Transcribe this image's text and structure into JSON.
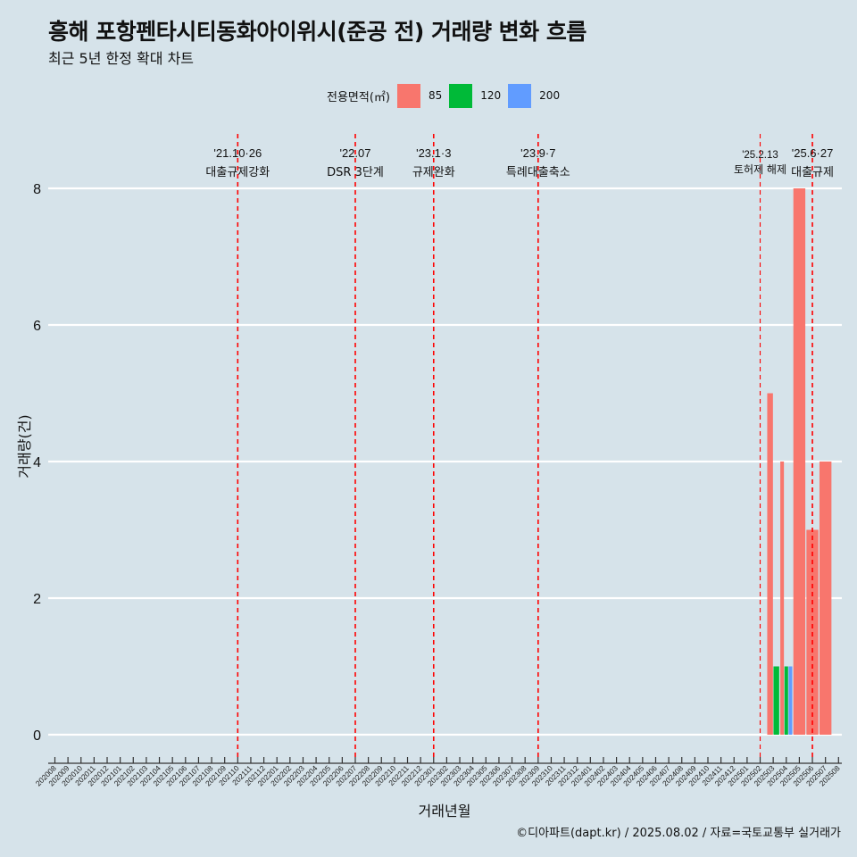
{
  "title": "흥해 포항펜타시티동화아이위시(준공 전) 거래량 변화 흐름",
  "subtitle": "최근 5년 한정 확대 차트",
  "caption": "©디아파트(dapt.kr) / 2025.08.02 / 자료=국토교통부 실거래가",
  "legend": {
    "title": "전용면적(㎡)",
    "items": [
      {
        "label": "85",
        "color": "#f8766d"
      },
      {
        "label": "120",
        "color": "#00ba38"
      },
      {
        "label": "200",
        "color": "#619cff"
      }
    ]
  },
  "chart_data": {
    "type": "bar",
    "xlabel": "거래년월",
    "ylabel": "거래량(건)",
    "ylim": [
      0,
      8
    ],
    "yticks": [
      0,
      2,
      4,
      6,
      8
    ],
    "grid": "horizontal",
    "legend_position": "top",
    "categories": [
      "202008",
      "202009",
      "202010",
      "202011",
      "202012",
      "202101",
      "202102",
      "202103",
      "202104",
      "202105",
      "202106",
      "202107",
      "202108",
      "202109",
      "202110",
      "202111",
      "202112",
      "202201",
      "202202",
      "202203",
      "202204",
      "202205",
      "202206",
      "202207",
      "202208",
      "202209",
      "202210",
      "202211",
      "202212",
      "202301",
      "202302",
      "202303",
      "202304",
      "202305",
      "202306",
      "202307",
      "202308",
      "202309",
      "202310",
      "202311",
      "202312",
      "202401",
      "202402",
      "202403",
      "202404",
      "202405",
      "202406",
      "202407",
      "202408",
      "202409",
      "202410",
      "202411",
      "202412",
      "202501",
      "202502",
      "202503",
      "202504",
      "202505",
      "202506",
      "202507",
      "202508"
    ],
    "bars": [
      {
        "x": "202503",
        "area": "85",
        "value": 5
      },
      {
        "x": "202503",
        "area": "120",
        "value": 1
      },
      {
        "x": "202504",
        "area": "85",
        "value": 4
      },
      {
        "x": "202504",
        "area": "120",
        "value": 1
      },
      {
        "x": "202504",
        "area": "200",
        "value": 1
      },
      {
        "x": "202505",
        "area": "85",
        "value": 8
      },
      {
        "x": "202506",
        "area": "85",
        "value": 3
      },
      {
        "x": "202507",
        "area": "85",
        "value": 4
      }
    ],
    "events": [
      {
        "x": "202110",
        "date": "'21.10·26",
        "label": "대출규제강화",
        "style": "major"
      },
      {
        "x": "202207",
        "date": "'22.07",
        "label": "DSR 3단계",
        "style": "major"
      },
      {
        "x": "202301",
        "date": "'23.1·3",
        "label": "규제완화",
        "style": "major"
      },
      {
        "x": "202309",
        "date": "'23.9·7",
        "label": "특례대출축소",
        "style": "major"
      },
      {
        "x": "202502",
        "date": "'25.2.13",
        "label": "토허제 해제",
        "style": "minor"
      },
      {
        "x": "202506",
        "date": "'25.6·27",
        "label": "대출규제",
        "style": "major"
      }
    ]
  }
}
